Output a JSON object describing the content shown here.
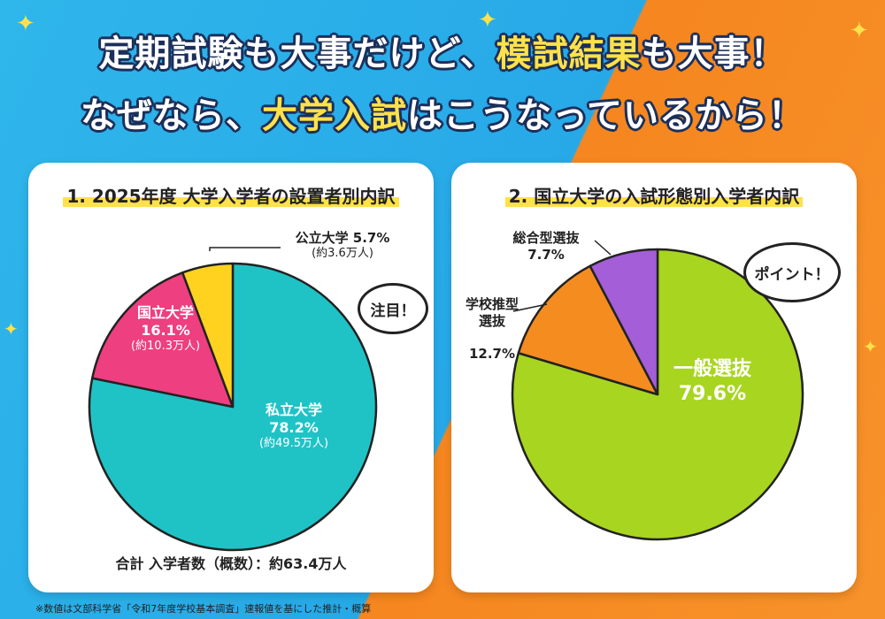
{
  "headline": {
    "line1_a": "定期試験も大事だけど、",
    "line1_b": "模試結果",
    "line1_c": "も大事！",
    "line2_a": "なぜなら、",
    "line2_b": "大学入試",
    "line2_c": "はこうなっているから！"
  },
  "card1": {
    "title": "1. 2025年度 大学入学者の設置者別内訳",
    "callout": "注目！",
    "total": "合計 入学者数（概数）：約63.4万人",
    "labels": {
      "private_name": "私立大学",
      "private_pct": "78.2%",
      "private_count": "(約49.5万人)",
      "national_name": "国立大学",
      "national_pct": "16.1%",
      "national_count": "(約10.3万人)",
      "public_name_pct": "公立大学 5.7%",
      "public_count": "(約3.6万人)"
    }
  },
  "card2": {
    "title": "2. 国立大学の入試形態別入学者内訳",
    "callout": "ポイント！",
    "labels": {
      "general_name": "一般選抜",
      "general_pct": "79.6%",
      "school_name": "学校推型\n選抜",
      "school_pct": "12.7%",
      "comprehensive_name": "総合型選抜",
      "comprehensive_pct": "7.7%"
    }
  },
  "footnote": "※数値は文部科学省「令和7年度学校基本調査」速報値を基にした推計・概算",
  "colors": {
    "teal": "#1fc3c6",
    "pink": "#ee3f80",
    "yellow": "#ffd21f",
    "green": "#a8d51f",
    "orange": "#f58c1f",
    "purple": "#a45ed8"
  },
  "chart_data": [
    {
      "type": "pie",
      "title": "1. 2025年度 大学入学者の設置者別内訳",
      "categories": [
        "私立大学",
        "国立大学",
        "公立大学"
      ],
      "values": [
        78.2,
        16.1,
        5.7
      ],
      "counts": [
        "約49.5万人",
        "約10.3万人",
        "約3.6万人"
      ],
      "unit": "%"
    },
    {
      "type": "pie",
      "title": "2. 国立大学の入試形態別入学者内訳",
      "categories": [
        "一般選抜",
        "学校推型選抜",
        "総合型選抜"
      ],
      "values": [
        79.6,
        12.7,
        7.7
      ],
      "unit": "%"
    }
  ]
}
